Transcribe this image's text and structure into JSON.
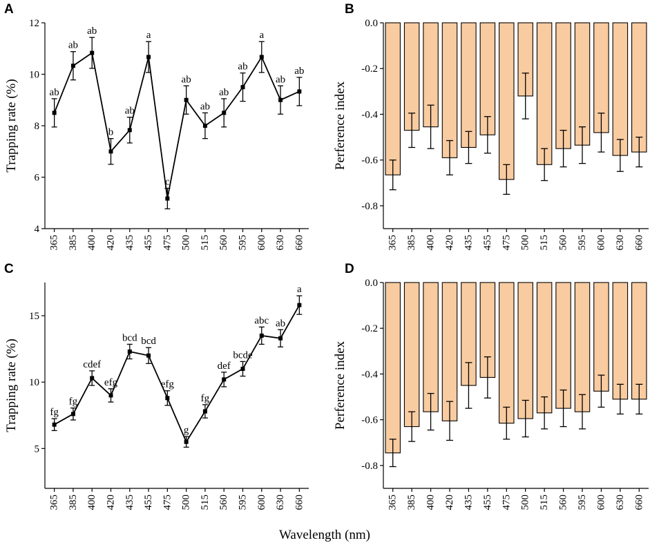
{
  "shared_xlabel": "Wavelength (nm)",
  "colors": {
    "bar_fill": "#f8cba0",
    "ink": "#000000"
  },
  "chart_data": [
    {
      "panel": "A",
      "type": "line",
      "ylabel": "Trapping rate (%)",
      "ylim": [
        4,
        12
      ],
      "yticks": [
        4,
        6,
        8,
        10,
        12
      ],
      "categories": [
        "365",
        "385",
        "400",
        "420",
        "435",
        "455",
        "475",
        "500",
        "515",
        "560",
        "595",
        "600",
        "630",
        "660"
      ],
      "values": [
        8.5,
        10.33,
        10.83,
        7.0,
        7.83,
        10.67,
        5.17,
        9.0,
        8.0,
        8.5,
        9.5,
        10.67,
        9.0,
        9.33
      ],
      "errors": [
        0.55,
        0.55,
        0.6,
        0.5,
        0.5,
        0.6,
        0.4,
        0.55,
        0.5,
        0.55,
        0.55,
        0.6,
        0.55,
        0.55
      ],
      "sig_labels": [
        "ab",
        "ab",
        "ab",
        "b",
        "ab",
        "a",
        "c",
        "ab",
        "ab",
        "ab",
        "ab",
        "a",
        "ab",
        "ab"
      ]
    },
    {
      "panel": "B",
      "type": "bar",
      "ylabel": "Perference index",
      "ylim": [
        -0.9,
        0.0
      ],
      "yticks": [
        "0.0",
        "-0.2",
        "-0.4",
        "-0.6",
        "-0.8"
      ],
      "ytick_values": [
        0.0,
        -0.2,
        -0.4,
        -0.6,
        -0.8
      ],
      "categories": [
        "365",
        "385",
        "400",
        "420",
        "435",
        "455",
        "475",
        "500",
        "515",
        "560",
        "595",
        "600",
        "630",
        "660"
      ],
      "values": [
        -0.665,
        -0.47,
        -0.455,
        -0.59,
        -0.545,
        -0.49,
        -0.685,
        -0.32,
        -0.62,
        -0.55,
        -0.535,
        -0.48,
        -0.58,
        -0.565
      ],
      "errors": [
        0.065,
        0.075,
        0.095,
        0.075,
        0.07,
        0.08,
        0.065,
        0.1,
        0.07,
        0.08,
        0.08,
        0.085,
        0.07,
        0.065
      ]
    },
    {
      "panel": "C",
      "type": "line",
      "ylabel": "Trapping rate (%)",
      "ylim": [
        2,
        17.5
      ],
      "yticks": [
        5,
        10,
        15
      ],
      "categories": [
        "365",
        "385",
        "400",
        "420",
        "435",
        "455",
        "475",
        "500",
        "515",
        "560",
        "595",
        "600",
        "630",
        "660"
      ],
      "values": [
        6.8,
        7.6,
        10.3,
        9.0,
        12.3,
        12.0,
        8.8,
        5.5,
        7.8,
        10.2,
        11.0,
        13.5,
        13.3,
        15.8
      ],
      "errors": [
        0.45,
        0.45,
        0.55,
        0.5,
        0.55,
        0.6,
        0.55,
        0.4,
        0.5,
        0.55,
        0.55,
        0.65,
        0.65,
        0.7
      ],
      "sig_labels": [
        "fg",
        "fg",
        "cdef",
        "efg",
        "bcd",
        "bcd",
        "efg",
        "g",
        "fg",
        "def",
        "bcde",
        "abc",
        "ab",
        "a"
      ]
    },
    {
      "panel": "D",
      "type": "bar",
      "ylabel": "Perference index",
      "ylim": [
        -0.9,
        0.0
      ],
      "yticks": [
        "0.0",
        "-0.2",
        "-0.4",
        "-0.6",
        "-0.8"
      ],
      "ytick_values": [
        0.0,
        -0.2,
        -0.4,
        -0.6,
        -0.8
      ],
      "categories": [
        "365",
        "385",
        "400",
        "420",
        "435",
        "455",
        "475",
        "500",
        "515",
        "560",
        "595",
        "600",
        "630",
        "660"
      ],
      "values": [
        -0.745,
        -0.63,
        -0.565,
        -0.605,
        -0.45,
        -0.415,
        -0.615,
        -0.595,
        -0.57,
        -0.55,
        -0.565,
        -0.475,
        -0.51,
        -0.51
      ],
      "errors": [
        0.06,
        0.065,
        0.08,
        0.085,
        0.1,
        0.09,
        0.07,
        0.08,
        0.07,
        0.08,
        0.075,
        0.07,
        0.065,
        0.065
      ]
    }
  ]
}
